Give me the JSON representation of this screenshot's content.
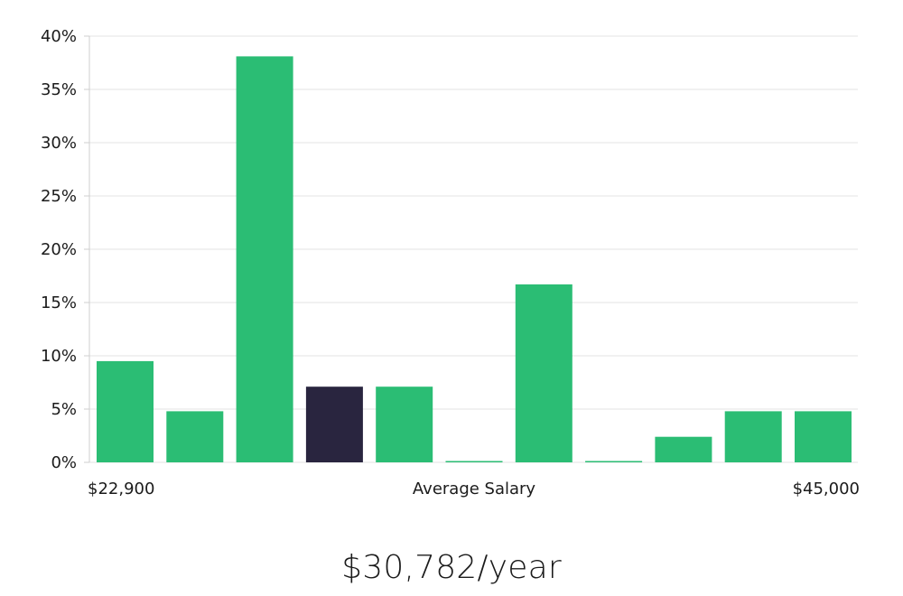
{
  "colors": {
    "bar": "#2bbd74",
    "highlight": "#29253f",
    "grid": "#e3e3e3"
  },
  "chart_data": {
    "type": "bar",
    "values": [
      9.5,
      4.8,
      38.1,
      7.1,
      7.1,
      0,
      16.7,
      0,
      2.4,
      4.8,
      4.8
    ],
    "highlight_index": 3,
    "ylim": [
      0,
      40
    ],
    "yticks": [
      "0%",
      "5%",
      "10%",
      "15%",
      "20%",
      "25%",
      "30%",
      "35%",
      "40%"
    ],
    "ytick_values": [
      0,
      5,
      10,
      15,
      20,
      25,
      30,
      35,
      40
    ],
    "xlabel_left": "$22,900",
    "xlabel_center": "Average Salary",
    "xlabel_right": "$45,000",
    "grid": true
  },
  "summary": {
    "salary": "$30,782/year"
  }
}
